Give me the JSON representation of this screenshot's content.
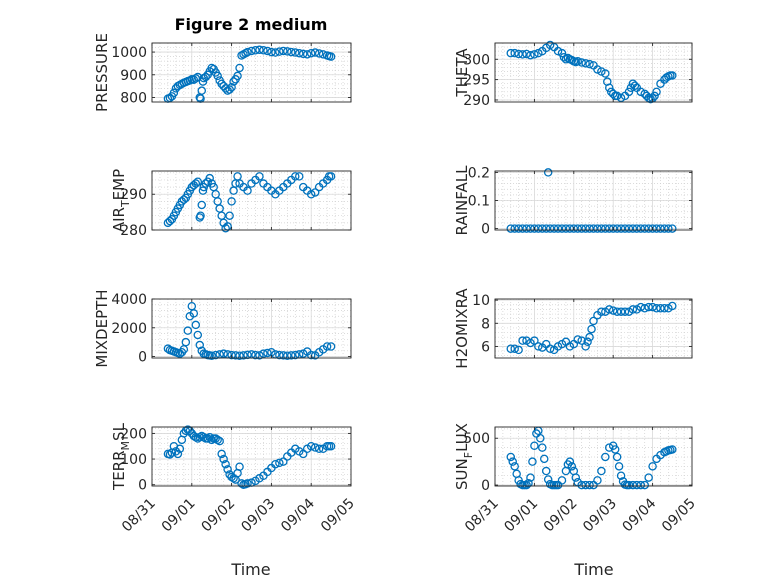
{
  "title": "Figure 2 medium",
  "marker_color": "#0072BD",
  "xlabel": "Time",
  "x_tick_labels": [
    "08/31",
    "09/01",
    "09/02",
    "09/03",
    "09/04",
    "09/05"
  ],
  "chart_data": [
    {
      "type": "scatter",
      "name": "pressure",
      "title": "Figure 2 medium",
      "ylabel": "PRESSURE",
      "ylabel_sub": "",
      "ylim": [
        780,
        1040
      ],
      "yticks": [
        800,
        900,
        1000
      ],
      "grid": true,
      "minor_grid": true,
      "x": [
        0.4,
        0.45,
        0.5,
        0.55,
        0.6,
        0.65,
        0.7,
        0.75,
        0.8,
        0.85,
        0.9,
        0.95,
        1.0,
        1.05,
        1.1,
        1.15,
        1.2,
        1.22,
        1.25,
        1.28,
        1.3,
        1.35,
        1.4,
        1.45,
        1.5,
        1.55,
        1.6,
        1.65,
        1.7,
        1.75,
        1.8,
        1.85,
        1.9,
        1.95,
        2.0,
        2.05,
        2.1,
        2.15,
        2.2,
        2.25,
        2.3,
        2.35,
        2.4,
        2.5,
        2.6,
        2.7,
        2.8,
        2.9,
        3.0,
        3.1,
        3.2,
        3.3,
        3.4,
        3.5,
        3.6,
        3.7,
        3.8,
        3.9,
        4.0,
        4.1,
        4.2,
        4.3,
        4.4,
        4.45,
        4.5
      ],
      "y": [
        795,
        798,
        805,
        820,
        840,
        850,
        855,
        860,
        865,
        868,
        872,
        875,
        880,
        878,
        884,
        890,
        800,
        795,
        830,
        870,
        885,
        890,
        900,
        915,
        930,
        925,
        910,
        895,
        875,
        860,
        850,
        840,
        830,
        835,
        845,
        870,
        880,
        895,
        930,
        985,
        990,
        995,
        1000,
        1005,
        1008,
        1010,
        1008,
        1005,
        1000,
        998,
        1002,
        1005,
        1003,
        1000,
        998,
        995,
        992,
        990,
        995,
        998,
        994,
        990,
        985,
        982,
        980
      ]
    },
    {
      "type": "scatter",
      "name": "theta",
      "title": "",
      "ylabel": "THETA",
      "ylabel_sub": "",
      "ylim": [
        289.5,
        304
      ],
      "yticks": [
        290,
        295,
        300
      ],
      "grid": true,
      "minor_grid": true,
      "x": [
        0.4,
        0.5,
        0.6,
        0.7,
        0.8,
        0.9,
        1.0,
        1.1,
        1.2,
        1.3,
        1.4,
        1.5,
        1.6,
        1.7,
        1.75,
        1.8,
        1.85,
        1.9,
        1.95,
        2.0,
        2.05,
        2.1,
        2.2,
        2.3,
        2.4,
        2.5,
        2.6,
        2.7,
        2.8,
        2.85,
        2.9,
        2.95,
        3.0,
        3.05,
        3.1,
        3.2,
        3.3,
        3.4,
        3.45,
        3.5,
        3.55,
        3.6,
        3.7,
        3.8,
        3.85,
        3.9,
        3.95,
        4.0,
        4.05,
        4.1,
        4.2,
        4.3,
        4.35,
        4.4,
        4.45,
        4.5
      ],
      "y": [
        301.5,
        301.5,
        301.3,
        301.2,
        301.3,
        301,
        301.2,
        301.5,
        302,
        302.8,
        303.5,
        303,
        302,
        301.5,
        300.5,
        300,
        300.3,
        300,
        299.8,
        299.5,
        299.3,
        299.5,
        299.2,
        299,
        298.8,
        298.5,
        297.5,
        297,
        296.5,
        294.5,
        293,
        292,
        291.5,
        291,
        291,
        290.5,
        291,
        292,
        293,
        294,
        293.5,
        293,
        292,
        291.5,
        291,
        290.5,
        290.2,
        290.4,
        291,
        292,
        294,
        295,
        295.5,
        295.8,
        296,
        296
      ]
    },
    {
      "type": "scatter",
      "name": "air_temp",
      "title": "",
      "ylabel": "AIR",
      "ylabel_sub": "T",
      "ylabel_suffix": "EMP",
      "ylim": [
        280,
        296.5
      ],
      "yticks": [
        280,
        290
      ],
      "grid": true,
      "minor_grid": true,
      "x": [
        0.4,
        0.45,
        0.5,
        0.55,
        0.6,
        0.65,
        0.7,
        0.75,
        0.8,
        0.85,
        0.9,
        0.95,
        1.0,
        1.05,
        1.1,
        1.15,
        1.2,
        1.22,
        1.25,
        1.28,
        1.3,
        1.35,
        1.4,
        1.45,
        1.5,
        1.55,
        1.6,
        1.65,
        1.7,
        1.75,
        1.8,
        1.85,
        1.9,
        1.95,
        2.0,
        2.05,
        2.1,
        2.15,
        2.2,
        2.3,
        2.4,
        2.5,
        2.6,
        2.7,
        2.8,
        2.9,
        3.0,
        3.1,
        3.2,
        3.3,
        3.4,
        3.5,
        3.6,
        3.7,
        3.8,
        3.9,
        4.0,
        4.1,
        4.2,
        4.3,
        4.4,
        4.45,
        4.5
      ],
      "y": [
        282,
        282.5,
        283,
        284,
        285,
        286,
        287,
        288,
        288.5,
        289,
        290,
        291,
        292,
        292.5,
        293,
        293.5,
        283.5,
        284,
        287,
        291,
        292,
        293,
        293.5,
        294.5,
        293,
        292,
        290,
        288,
        286,
        284,
        282,
        280.5,
        281,
        284,
        288,
        291,
        293,
        295,
        293,
        292,
        291,
        293,
        294,
        295,
        293,
        292,
        291,
        290,
        291,
        292,
        293,
        294,
        295,
        295,
        292,
        291,
        290,
        290.5,
        292,
        293,
        294,
        295,
        295
      ]
    },
    {
      "type": "scatter",
      "name": "rainfall",
      "title": "",
      "ylabel": "RAINFALL",
      "ylabel_sub": "",
      "ylim": [
        -0.005,
        0.205
      ],
      "yticks": [
        0,
        0.1,
        0.2
      ],
      "grid": true,
      "minor_grid": true,
      "x": [
        0.4,
        0.5,
        0.6,
        0.7,
        0.8,
        0.9,
        1.0,
        1.1,
        1.2,
        1.3,
        1.35,
        1.4,
        1.5,
        1.6,
        1.7,
        1.8,
        1.9,
        2.0,
        2.1,
        2.2,
        2.3,
        2.4,
        2.5,
        2.6,
        2.7,
        2.8,
        2.9,
        3.0,
        3.1,
        3.2,
        3.3,
        3.4,
        3.5,
        3.6,
        3.7,
        3.8,
        3.9,
        4.0,
        4.1,
        4.2,
        4.3,
        4.4,
        4.5
      ],
      "y": [
        0,
        0,
        0,
        0,
        0,
        0,
        0,
        0,
        0,
        0,
        0.2,
        0,
        0,
        0,
        0,
        0,
        0,
        0,
        0,
        0,
        0,
        0,
        0,
        0,
        0,
        0,
        0,
        0,
        0,
        0,
        0,
        0,
        0,
        0,
        0,
        0,
        0,
        0,
        0,
        0,
        0,
        0,
        0
      ]
    },
    {
      "type": "scatter",
      "name": "mixdepth",
      "title": "",
      "ylabel": "MIXDEPTH",
      "ylabel_sub": "",
      "ylim": [
        -100,
        4000
      ],
      "yticks": [
        0,
        2000,
        4000
      ],
      "grid": true,
      "minor_grid": true,
      "x": [
        0.4,
        0.45,
        0.5,
        0.55,
        0.6,
        0.65,
        0.7,
        0.75,
        0.8,
        0.85,
        0.9,
        0.95,
        1.0,
        1.05,
        1.1,
        1.15,
        1.2,
        1.25,
        1.3,
        1.35,
        1.4,
        1.45,
        1.5,
        1.6,
        1.7,
        1.8,
        1.9,
        2.0,
        2.1,
        2.2,
        2.3,
        2.4,
        2.5,
        2.6,
        2.7,
        2.8,
        2.9,
        3.0,
        3.1,
        3.2,
        3.3,
        3.4,
        3.5,
        3.6,
        3.7,
        3.8,
        3.9,
        4.0,
        4.1,
        4.2,
        4.3,
        4.4,
        4.5
      ],
      "y": [
        550,
        450,
        400,
        350,
        300,
        250,
        200,
        300,
        500,
        1000,
        1800,
        2800,
        3500,
        3000,
        2200,
        1500,
        800,
        400,
        200,
        150,
        100,
        80,
        60,
        100,
        150,
        200,
        150,
        100,
        80,
        60,
        80,
        120,
        150,
        100,
        80,
        200,
        250,
        300,
        150,
        100,
        80,
        60,
        80,
        100,
        150,
        200,
        350,
        100,
        80,
        300,
        500,
        700,
        700
      ]
    },
    {
      "type": "scatter",
      "name": "h2omixra",
      "title": "",
      "ylabel": "H2OMIXRA",
      "ylabel_sub": "",
      "ylim": [
        5,
        10.1
      ],
      "yticks": [
        6,
        8,
        10
      ],
      "grid": true,
      "minor_grid": true,
      "x": [
        0.4,
        0.5,
        0.6,
        0.7,
        0.8,
        0.9,
        1.0,
        1.1,
        1.2,
        1.3,
        1.4,
        1.5,
        1.6,
        1.7,
        1.8,
        1.9,
        2.0,
        2.1,
        2.2,
        2.3,
        2.35,
        2.4,
        2.45,
        2.5,
        2.6,
        2.7,
        2.8,
        2.9,
        3.0,
        3.1,
        3.2,
        3.3,
        3.4,
        3.5,
        3.6,
        3.7,
        3.8,
        3.9,
        4.0,
        4.1,
        4.2,
        4.3,
        4.4,
        4.5
      ],
      "y": [
        5.8,
        5.8,
        5.7,
        6.5,
        6.5,
        6.3,
        6.5,
        6.0,
        5.9,
        6.2,
        5.8,
        5.7,
        6.0,
        6.2,
        6.4,
        6.0,
        6.2,
        6.6,
        6.5,
        6.0,
        6.4,
        6.8,
        7.5,
        8.2,
        8.7,
        9.0,
        9.0,
        9.2,
        9.1,
        9.0,
        9.0,
        9.0,
        9.0,
        9.2,
        9.2,
        9.4,
        9.3,
        9.4,
        9.4,
        9.3,
        9.3,
        9.3,
        9.3,
        9.5
      ]
    },
    {
      "type": "scatter",
      "name": "terr_msl",
      "title": "",
      "ylabel": "TERR",
      "ylabel_sub": "M",
      "ylabel_suffix": "SL",
      "ylim": [
        -5,
        225
      ],
      "yticks": [
        0,
        100,
        200
      ],
      "grid": true,
      "minor_grid": true,
      "x": [
        0.4,
        0.45,
        0.5,
        0.55,
        0.6,
        0.65,
        0.7,
        0.75,
        0.8,
        0.85,
        0.9,
        0.95,
        1.0,
        1.05,
        1.1,
        1.15,
        1.2,
        1.25,
        1.3,
        1.35,
        1.4,
        1.45,
        1.5,
        1.55,
        1.6,
        1.65,
        1.7,
        1.75,
        1.8,
        1.85,
        1.9,
        1.95,
        2.0,
        2.05,
        2.1,
        2.15,
        2.2,
        2.25,
        2.3,
        2.35,
        2.4,
        2.5,
        2.6,
        2.7,
        2.8,
        2.9,
        3.0,
        3.1,
        3.2,
        3.3,
        3.4,
        3.5,
        3.6,
        3.7,
        3.8,
        3.9,
        4.0,
        4.1,
        4.2,
        4.3,
        4.4,
        4.45,
        4.5
      ],
      "y": [
        120,
        118,
        125,
        150,
        130,
        120,
        140,
        175,
        200,
        210,
        215,
        210,
        200,
        190,
        185,
        180,
        185,
        190,
        185,
        180,
        180,
        185,
        175,
        180,
        180,
        175,
        170,
        120,
        100,
        80,
        60,
        40,
        30,
        25,
        20,
        45,
        70,
        5,
        0,
        2,
        5,
        8,
        15,
        25,
        35,
        50,
        65,
        80,
        85,
        90,
        110,
        125,
        140,
        130,
        120,
        140,
        150,
        145,
        140,
        140,
        150,
        150,
        150
      ]
    },
    {
      "type": "scatter",
      "name": "sun_flux",
      "title": "",
      "ylabel": "SUN",
      "ylabel_sub": "F",
      "ylabel_suffix": "LUX",
      "ylim": [
        -10,
        620
      ],
      "yticks": [
        0,
        500
      ],
      "grid": true,
      "minor_grid": true,
      "x": [
        0.4,
        0.45,
        0.5,
        0.55,
        0.6,
        0.65,
        0.7,
        0.75,
        0.8,
        0.85,
        0.9,
        0.95,
        1.0,
        1.05,
        1.1,
        1.15,
        1.2,
        1.25,
        1.3,
        1.35,
        1.4,
        1.45,
        1.5,
        1.55,
        1.6,
        1.7,
        1.8,
        1.85,
        1.9,
        1.95,
        2.0,
        2.05,
        2.1,
        2.2,
        2.3,
        2.4,
        2.5,
        2.6,
        2.7,
        2.8,
        2.9,
        3.0,
        3.05,
        3.1,
        3.15,
        3.2,
        3.25,
        3.3,
        3.35,
        3.4,
        3.5,
        3.6,
        3.7,
        3.8,
        3.9,
        4.0,
        4.1,
        4.2,
        4.3,
        4.35,
        4.4,
        4.45,
        4.5
      ],
      "y": [
        300,
        250,
        200,
        120,
        50,
        10,
        0,
        0,
        0,
        20,
        80,
        250,
        420,
        550,
        580,
        500,
        400,
        280,
        150,
        60,
        10,
        0,
        0,
        0,
        0,
        50,
        150,
        220,
        250,
        200,
        150,
        80,
        30,
        0,
        0,
        0,
        0,
        50,
        150,
        300,
        400,
        420,
        380,
        300,
        200,
        100,
        40,
        5,
        0,
        0,
        0,
        0,
        0,
        0,
        80,
        200,
        280,
        320,
        350,
        360,
        370,
        375,
        380
      ]
    }
  ]
}
